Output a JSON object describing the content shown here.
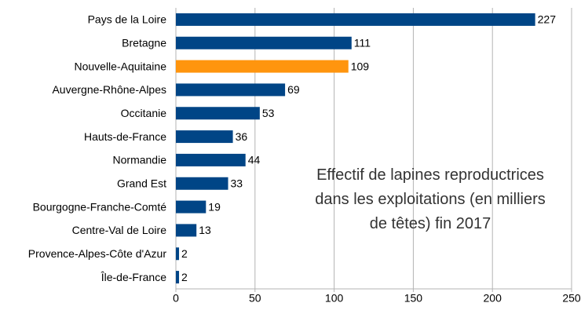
{
  "chart_data": {
    "type": "barh",
    "annotation": "Effectif de lapines reproductrices dans les exploitations (en milliers de têtes) fin 2017",
    "categories": [
      "Pays de la Loire",
      "Bretagne",
      "Nouvelle-Aquitaine",
      "Auvergne-Rhône-Alpes",
      "Occitanie",
      "Hauts-de-France",
      "Normandie",
      "Grand Est",
      "Bourgogne-Franche-Comté",
      "Centre-Val de Loire",
      "Provence-Alpes-Côte d'Azur",
      "Île-de-France"
    ],
    "values": [
      227,
      111,
      109,
      69,
      53,
      36,
      44,
      33,
      19,
      13,
      2,
      2
    ],
    "colors": [
      "#004586",
      "#004586",
      "#ff950e",
      "#004586",
      "#004586",
      "#004586",
      "#004586",
      "#004586",
      "#004586",
      "#004586",
      "#004586",
      "#004586"
    ],
    "xlim": [
      0,
      250
    ],
    "xticks": [
      0,
      50,
      100,
      150,
      200,
      250
    ],
    "grid": true
  }
}
